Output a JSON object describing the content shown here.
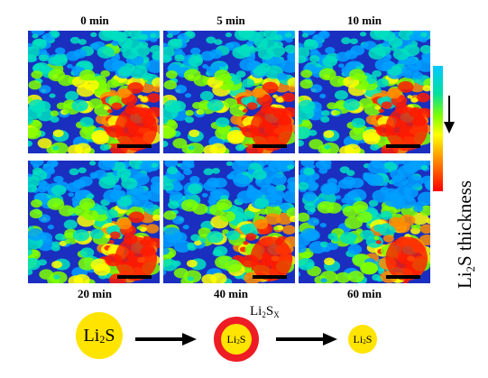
{
  "time_labels": [
    "0 min",
    "5 min",
    "10 min",
    "20 min",
    "40 min",
    "60 min"
  ],
  "axis_label": {
    "main": "Li",
    "sub": "2",
    "rest": "S thickness"
  },
  "colorbar_colors": [
    "#00c8ff",
    "#7fff00",
    "#ffff00",
    "#ff8c00",
    "#ff0000"
  ],
  "schematic": {
    "start": {
      "main": "Li",
      "sub": "2",
      "rest": "S"
    },
    "middle_core": {
      "main": "Li",
      "sub": "2",
      "rest": "S"
    },
    "middle_shell": {
      "main": "Li",
      "sub": "2",
      "rest": "S",
      "sub2": "X"
    },
    "end": {
      "main": "Li",
      "sub": "2",
      "rest": "S"
    }
  }
}
